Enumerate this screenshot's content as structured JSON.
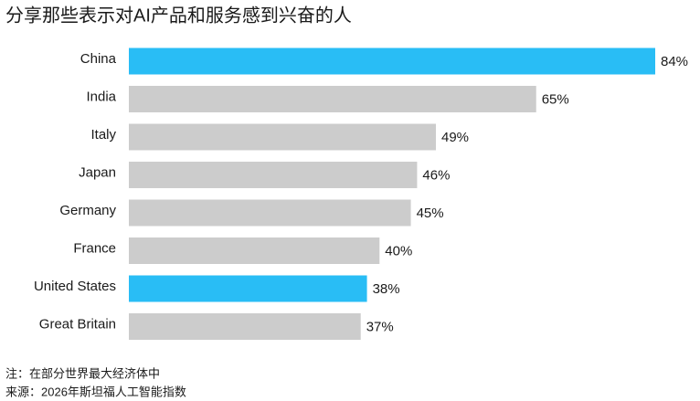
{
  "chart_data": {
    "type": "bar",
    "orientation": "horizontal",
    "title": "分享那些表示对AI产品和服务感到兴奋的人",
    "categories": [
      "China",
      "India",
      "Italy",
      "Japan",
      "Germany",
      "France",
      "United States",
      "Great Britain"
    ],
    "values": [
      84,
      65,
      49,
      46,
      45,
      40,
      38,
      37
    ],
    "value_labels": [
      "84%",
      "65%",
      "49%",
      "46%",
      "45%",
      "40%",
      "38%",
      "37%"
    ],
    "colors": [
      "#29bdf5",
      "#cccccc",
      "#cccccc",
      "#cccccc",
      "#cccccc",
      "#cccccc",
      "#29bdf5",
      "#cccccc"
    ],
    "notes": [
      "注：在部分世界最大经济体中",
      "来源：2026年斯坦福人工智能指数"
    ]
  }
}
